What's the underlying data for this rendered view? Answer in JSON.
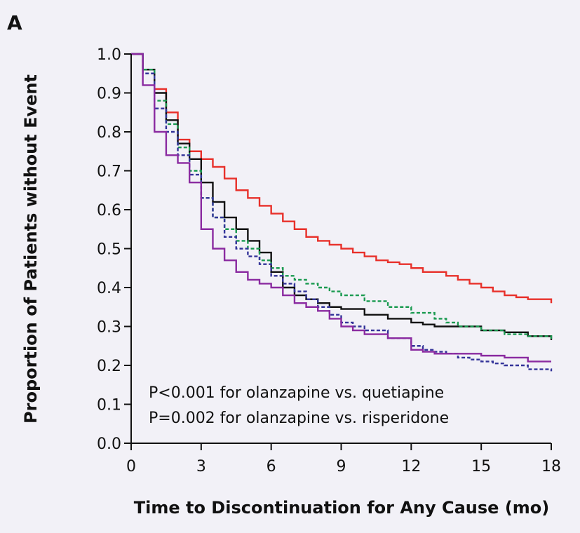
{
  "panel_label": "A",
  "chart_data": {
    "type": "line",
    "title": "",
    "xlabel": "Time to Discontinuation for Any Cause (mo)",
    "ylabel": "Proportion of Patients without Event",
    "xlim": [
      0,
      18
    ],
    "ylim": [
      0.0,
      1.0
    ],
    "x_ticks": [
      0,
      3,
      6,
      9,
      12,
      15,
      18
    ],
    "x_tick_labels": [
      "0",
      "3",
      "6",
      "9",
      "12",
      "15",
      "18"
    ],
    "y_ticks": [
      0.0,
      0.1,
      0.2,
      0.3,
      0.4,
      0.5,
      0.6,
      0.7,
      0.8,
      0.9,
      1.0
    ],
    "y_tick_labels": [
      "0.0",
      "0.1",
      "0.2",
      "0.3",
      "0.4",
      "0.5",
      "0.6",
      "0.7",
      "0.8",
      "0.9",
      "1.0"
    ],
    "grid": false,
    "annotations": [
      "P<0.001 for olanzapine vs. quetiapine",
      "P=0.002 for olanzapine vs. risperidone"
    ],
    "series": [
      {
        "name": "red",
        "color": "#e8302a",
        "dashed": false,
        "points": [
          [
            0,
            1.0
          ],
          [
            0.5,
            0.96
          ],
          [
            1,
            0.91
          ],
          [
            1.5,
            0.85
          ],
          [
            2,
            0.78
          ],
          [
            2.5,
            0.75
          ],
          [
            3,
            0.73
          ],
          [
            3.5,
            0.71
          ],
          [
            4,
            0.68
          ],
          [
            4.5,
            0.65
          ],
          [
            5,
            0.63
          ],
          [
            5.5,
            0.61
          ],
          [
            6,
            0.59
          ],
          [
            6.5,
            0.57
          ],
          [
            7,
            0.55
          ],
          [
            7.5,
            0.53
          ],
          [
            8,
            0.52
          ],
          [
            8.5,
            0.51
          ],
          [
            9,
            0.5
          ],
          [
            9.5,
            0.49
          ],
          [
            10,
            0.48
          ],
          [
            10.5,
            0.47
          ],
          [
            11,
            0.465
          ],
          [
            11.5,
            0.46
          ],
          [
            12,
            0.45
          ],
          [
            12.5,
            0.44
          ],
          [
            13,
            0.44
          ],
          [
            13.5,
            0.43
          ],
          [
            14,
            0.42
          ],
          [
            14.5,
            0.41
          ],
          [
            15,
            0.4
          ],
          [
            15.5,
            0.39
          ],
          [
            16,
            0.38
          ],
          [
            16.5,
            0.375
          ],
          [
            17,
            0.37
          ],
          [
            17.5,
            0.37
          ],
          [
            18,
            0.36
          ]
        ]
      },
      {
        "name": "black",
        "color": "#111111",
        "dashed": false,
        "points": [
          [
            0,
            1.0
          ],
          [
            0.5,
            0.96
          ],
          [
            1,
            0.9
          ],
          [
            1.5,
            0.83
          ],
          [
            2,
            0.77
          ],
          [
            2.5,
            0.73
          ],
          [
            3,
            0.67
          ],
          [
            3.5,
            0.62
          ],
          [
            4,
            0.58
          ],
          [
            4.5,
            0.55
          ],
          [
            5,
            0.52
          ],
          [
            5.5,
            0.49
          ],
          [
            6,
            0.44
          ],
          [
            6.5,
            0.4
          ],
          [
            7,
            0.38
          ],
          [
            7.5,
            0.37
          ],
          [
            8,
            0.36
          ],
          [
            8.5,
            0.35
          ],
          [
            9,
            0.345
          ],
          [
            10,
            0.33
          ],
          [
            11,
            0.32
          ],
          [
            12,
            0.31
          ],
          [
            12.5,
            0.305
          ],
          [
            13,
            0.3
          ],
          [
            14,
            0.3
          ],
          [
            15,
            0.29
          ],
          [
            16,
            0.285
          ],
          [
            17,
            0.275
          ],
          [
            18,
            0.265
          ]
        ]
      },
      {
        "name": "green",
        "color": "#1a9a50",
        "dashed": true,
        "points": [
          [
            0,
            1.0
          ],
          [
            0.5,
            0.96
          ],
          [
            1,
            0.88
          ],
          [
            1.5,
            0.82
          ],
          [
            2,
            0.76
          ],
          [
            2.5,
            0.7
          ],
          [
            3,
            0.63
          ],
          [
            3.5,
            0.58
          ],
          [
            4,
            0.55
          ],
          [
            4.5,
            0.52
          ],
          [
            5,
            0.5
          ],
          [
            5.5,
            0.47
          ],
          [
            6,
            0.45
          ],
          [
            6.5,
            0.43
          ],
          [
            7,
            0.42
          ],
          [
            7.5,
            0.41
          ],
          [
            8,
            0.4
          ],
          [
            8.5,
            0.39
          ],
          [
            9,
            0.38
          ],
          [
            10,
            0.365
          ],
          [
            11,
            0.35
          ],
          [
            12,
            0.335
          ],
          [
            13,
            0.32
          ],
          [
            13.5,
            0.31
          ],
          [
            14,
            0.3
          ],
          [
            15,
            0.29
          ],
          [
            16,
            0.28
          ],
          [
            17,
            0.275
          ],
          [
            18,
            0.265
          ]
        ]
      },
      {
        "name": "blue",
        "color": "#333399",
        "dashed": true,
        "points": [
          [
            0,
            1.0
          ],
          [
            0.5,
            0.95
          ],
          [
            1,
            0.86
          ],
          [
            1.5,
            0.8
          ],
          [
            2,
            0.74
          ],
          [
            2.5,
            0.69
          ],
          [
            3,
            0.63
          ],
          [
            3.5,
            0.58
          ],
          [
            4,
            0.53
          ],
          [
            4.5,
            0.5
          ],
          [
            5,
            0.48
          ],
          [
            5.5,
            0.46
          ],
          [
            6,
            0.43
          ],
          [
            6.5,
            0.41
          ],
          [
            7,
            0.39
          ],
          [
            7.5,
            0.37
          ],
          [
            8,
            0.35
          ],
          [
            8.5,
            0.33
          ],
          [
            9,
            0.31
          ],
          [
            9.5,
            0.3
          ],
          [
            10,
            0.29
          ],
          [
            11,
            0.27
          ],
          [
            12,
            0.25
          ],
          [
            12.5,
            0.24
          ],
          [
            13,
            0.235
          ],
          [
            13.5,
            0.23
          ],
          [
            14,
            0.22
          ],
          [
            14.5,
            0.215
          ],
          [
            15,
            0.21
          ],
          [
            15.5,
            0.205
          ],
          [
            16,
            0.2
          ],
          [
            17,
            0.19
          ],
          [
            18,
            0.185
          ]
        ]
      },
      {
        "name": "purple",
        "color": "#8a2aa0",
        "dashed": false,
        "points": [
          [
            0,
            1.0
          ],
          [
            0.5,
            0.92
          ],
          [
            1,
            0.8
          ],
          [
            1.5,
            0.74
          ],
          [
            2,
            0.72
          ],
          [
            2.5,
            0.67
          ],
          [
            3,
            0.55
          ],
          [
            3.5,
            0.5
          ],
          [
            4,
            0.47
          ],
          [
            4.5,
            0.44
          ],
          [
            5,
            0.42
          ],
          [
            5.5,
            0.41
          ],
          [
            6,
            0.4
          ],
          [
            6.5,
            0.38
          ],
          [
            7,
            0.36
          ],
          [
            7.5,
            0.35
          ],
          [
            8,
            0.34
          ],
          [
            8.5,
            0.32
          ],
          [
            9,
            0.3
          ],
          [
            9.5,
            0.29
          ],
          [
            10,
            0.28
          ],
          [
            11,
            0.27
          ],
          [
            12,
            0.24
          ],
          [
            12.5,
            0.235
          ],
          [
            13,
            0.23
          ],
          [
            14,
            0.23
          ],
          [
            15,
            0.225
          ],
          [
            16,
            0.22
          ],
          [
            17,
            0.21
          ],
          [
            18,
            0.21
          ]
        ]
      }
    ]
  }
}
